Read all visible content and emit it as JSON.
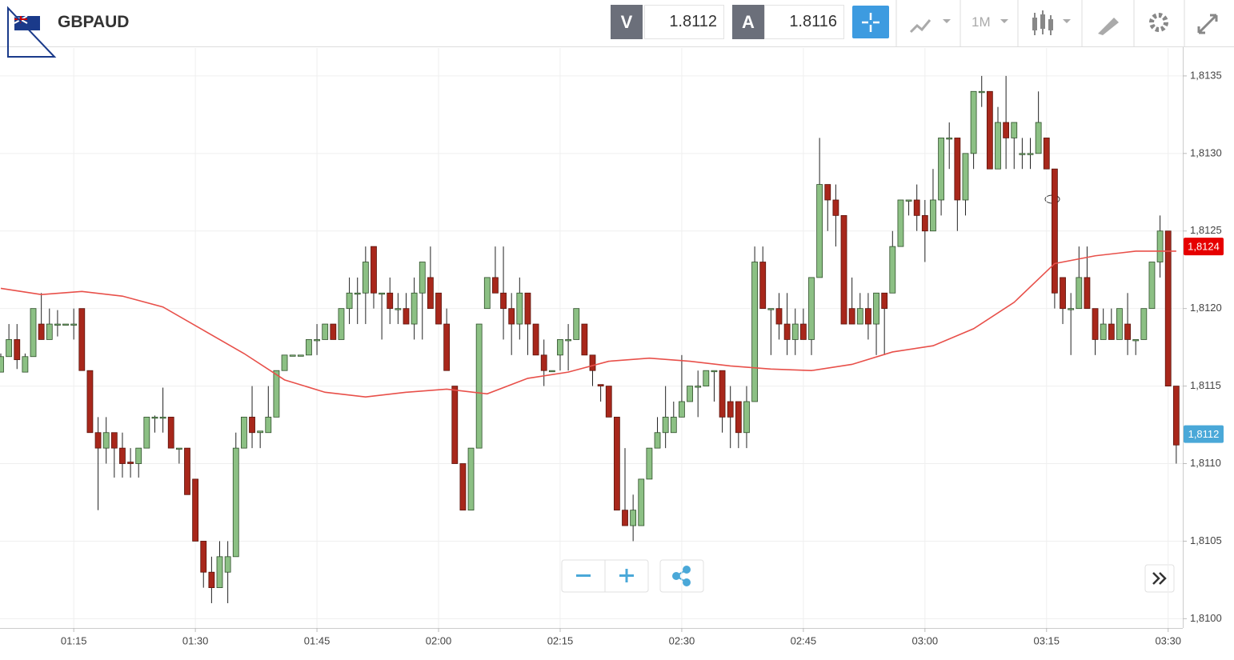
{
  "header": {
    "symbol": "GBPAUD",
    "sell": {
      "label": "V",
      "price": "1.8112"
    },
    "buy": {
      "label": "A",
      "price": "1.8116"
    },
    "timeframe": "1M"
  },
  "chart_data": {
    "type": "candlestick",
    "up_color": "#8cc084",
    "down_color": "#a8271b",
    "x": [
      "01:06",
      "01:07",
      "01:08",
      "01:09",
      "01:10",
      "01:11",
      "01:12",
      "01:13",
      "01:14",
      "01:15",
      "01:16",
      "01:17",
      "01:18",
      "01:19",
      "01:20",
      "01:21",
      "01:22",
      "01:23",
      "01:24",
      "01:25",
      "01:26",
      "01:27",
      "01:28",
      "01:29",
      "01:30",
      "01:31",
      "01:32",
      "01:33",
      "01:34",
      "01:35",
      "01:36",
      "01:37",
      "01:38",
      "01:39",
      "01:40",
      "01:41",
      "01:42",
      "01:43",
      "01:44",
      "01:45",
      "01:46",
      "01:47",
      "01:48",
      "01:49",
      "01:50",
      "01:51",
      "01:52",
      "01:53",
      "01:54",
      "01:55",
      "01:56",
      "01:57",
      "01:58",
      "01:59",
      "02:00",
      "02:01",
      "02:02",
      "02:03",
      "02:04",
      "02:05",
      "02:06",
      "02:07",
      "02:08",
      "02:09",
      "02:10",
      "02:11",
      "02:12",
      "02:13",
      "02:14",
      "02:15",
      "02:16",
      "02:17",
      "02:18",
      "02:19",
      "02:20",
      "02:21",
      "02:22",
      "02:23",
      "02:24",
      "02:25",
      "02:26",
      "02:27",
      "02:28",
      "02:29",
      "02:30",
      "02:31",
      "02:32",
      "02:33",
      "02:34",
      "02:35",
      "02:36",
      "02:37",
      "02:38",
      "02:39",
      "02:40",
      "02:41",
      "02:42",
      "02:43",
      "02:44",
      "02:45",
      "02:46",
      "02:47",
      "02:48",
      "02:49",
      "02:50",
      "02:51",
      "02:52",
      "02:53",
      "02:54",
      "02:55",
      "02:56",
      "02:57",
      "02:58",
      "02:59",
      "03:00",
      "03:01",
      "03:02",
      "03:03",
      "03:04",
      "03:05",
      "03:06",
      "03:07",
      "03:08",
      "03:09",
      "03:10",
      "03:11",
      "03:12",
      "03:13",
      "03:14",
      "03:15",
      "03:16",
      "03:17",
      "03:18",
      "03:19",
      "03:20",
      "03:21",
      "03:22",
      "03:23",
      "03:24",
      "03:25",
      "03:26",
      "03:27",
      "03:28",
      "03:29",
      "03:30",
      "03:31"
    ],
    "open": [
      1.81159,
      1.81169,
      1.8118,
      1.81159,
      1.81169,
      1.8119,
      1.8118,
      1.8119,
      1.8119,
      1.8119,
      1.812,
      1.8116,
      1.8112,
      1.8111,
      1.8112,
      1.8111,
      1.81101,
      1.811,
      1.8111,
      1.8113,
      1.8113,
      1.8113,
      1.8111,
      1.8111,
      1.8109,
      1.8105,
      1.8103,
      1.8102,
      1.8103,
      1.8104,
      1.8111,
      1.8113,
      1.8112,
      1.8112,
      1.8113,
      1.8116,
      1.8117,
      1.8117,
      1.8117,
      1.8118,
      1.8118,
      1.8119,
      1.8118,
      1.812,
      1.8121,
      1.8121,
      1.8124,
      1.8121,
      1.8121,
      1.812,
      1.812,
      1.8119,
      1.8121,
      1.8122,
      1.8121,
      1.8119,
      1.8115,
      1.811,
      1.8107,
      1.8111,
      1.812,
      1.8122,
      1.8121,
      1.812,
      1.8119,
      1.8121,
      1.8119,
      1.8117,
      1.8116,
      1.8117,
      1.8118,
      1.8118,
      1.8119,
      1.8117,
      1.81151,
      1.8115,
      1.8113,
      1.8107,
      1.8106,
      1.8106,
      1.8109,
      1.8111,
      1.8112,
      1.8112,
      1.8113,
      1.8114,
      1.8115,
      1.8115,
      1.8116,
      1.8116,
      1.8114,
      1.8114,
      1.8112,
      1.8114,
      1.8123,
      1.812,
      1.812,
      1.8119,
      1.8118,
      1.8119,
      1.8118,
      1.8122,
      1.8128,
      1.8127,
      1.8126,
      1.812,
      1.8119,
      1.812,
      1.8119,
      1.8121,
      1.8121,
      1.8124,
      1.8127,
      1.8127,
      1.8126,
      1.8125,
      1.8127,
      1.8131,
      1.8131,
      1.8127,
      1.813,
      1.8134,
      1.8134,
      1.8129,
      1.8132,
      1.8131,
      1.813,
      1.813,
      1.813,
      1.8131,
      1.8129,
      1.8122,
      1.812,
      1.812,
      1.8122,
      1.812,
      1.8118,
      1.8119,
      1.8118,
      1.8119,
      1.8118,
      1.8118,
      1.812,
      1.8123,
      1.8125,
      1.8115
    ],
    "high": [
      1.81171,
      1.8119,
      1.8119,
      1.81171,
      1.812,
      1.8121,
      1.812,
      1.81199,
      1.8119,
      1.812,
      1.812,
      1.8116,
      1.8113,
      1.8113,
      1.8112,
      1.8112,
      1.8111,
      1.8111,
      1.8113,
      1.81131,
      1.81149,
      1.8113,
      1.8111,
      1.8111,
      1.8109,
      1.8105,
      1.8104,
      1.8105,
      1.8105,
      1.8112,
      1.8113,
      1.8115,
      1.81121,
      1.8115,
      1.8116,
      1.8117,
      1.8117,
      1.8117,
      1.8118,
      1.8119,
      1.8119,
      1.8119,
      1.812,
      1.8122,
      1.8122,
      1.8124,
      1.8124,
      1.8121,
      1.8122,
      1.8121,
      1.8121,
      1.8122,
      1.8123,
      1.8124,
      1.8121,
      1.812,
      1.8115,
      1.811,
      1.8111,
      1.8119,
      1.8122,
      1.8124,
      1.8124,
      1.8121,
      1.8122,
      1.8121,
      1.8119,
      1.8118,
      1.8116,
      1.8118,
      1.8119,
      1.812,
      1.8119,
      1.8117,
      1.81151,
      1.8115,
      1.8113,
      1.8111,
      1.8108,
      1.8109,
      1.8111,
      1.8113,
      1.8115,
      1.8114,
      1.8117,
      1.8115,
      1.8116,
      1.8116,
      1.8116,
      1.8116,
      1.8115,
      1.8114,
      1.8115,
      1.8124,
      1.8124,
      1.812,
      1.8121,
      1.8121,
      1.812,
      1.812,
      1.8122,
      1.8131,
      1.8128,
      1.8128,
      1.8126,
      1.8122,
      1.8121,
      1.8121,
      1.8121,
      1.8121,
      1.8125,
      1.8127,
      1.8127,
      1.8128,
      1.8127,
      1.8129,
      1.8131,
      1.8132,
      1.8131,
      1.813,
      1.8134,
      1.8135,
      1.8134,
      1.8133,
      1.8135,
      1.8132,
      1.8131,
      1.8131,
      1.8134,
      1.8131,
      1.8129,
      1.8122,
      1.8121,
      1.8124,
      1.8124,
      1.812,
      1.812,
      1.812,
      1.812,
      1.8121,
      1.8118,
      1.812,
      1.8123,
      1.8126,
      1.8125,
      1.8115
    ],
    "low": [
      1.81159,
      1.81169,
      1.81161,
      1.81159,
      1.81169,
      1.8118,
      1.8118,
      1.81182,
      1.8119,
      1.8118,
      1.8116,
      1.8112,
      1.8107,
      1.811,
      1.81091,
      1.81091,
      1.81091,
      1.81091,
      1.8111,
      1.8112,
      1.8112,
      1.8111,
      1.811,
      1.8108,
      1.8105,
      1.8102,
      1.8101,
      1.8102,
      1.8101,
      1.8104,
      1.8111,
      1.8111,
      1.8111,
      1.8112,
      1.8113,
      1.8116,
      1.8117,
      1.8117,
      1.8117,
      1.8117,
      1.8118,
      1.8118,
      1.8118,
      1.8119,
      1.8119,
      1.8119,
      1.812,
      1.8118,
      1.8119,
      1.8119,
      1.8119,
      1.8118,
      1.8118,
      1.812,
      1.8119,
      1.8116,
      1.811,
      1.8107,
      1.8107,
      1.8111,
      1.812,
      1.8121,
      1.8118,
      1.8117,
      1.8118,
      1.8117,
      1.8117,
      1.8115,
      1.8116,
      1.8116,
      1.8116,
      1.8118,
      1.8117,
      1.8115,
      1.8114,
      1.8113,
      1.8107,
      1.8106,
      1.8105,
      1.8106,
      1.8109,
      1.8111,
      1.8111,
      1.8112,
      1.8113,
      1.8114,
      1.8113,
      1.8115,
      1.8114,
      1.8112,
      1.8111,
      1.8111,
      1.8111,
      1.8114,
      1.812,
      1.8117,
      1.8118,
      1.8117,
      1.8117,
      1.8118,
      1.8117,
      1.8122,
      1.8125,
      1.8124,
      1.8119,
      1.8119,
      1.8119,
      1.8118,
      1.8117,
      1.8117,
      1.8121,
      1.8124,
      1.8126,
      1.8125,
      1.8123,
      1.8125,
      1.8126,
      1.8129,
      1.8125,
      1.8126,
      1.8129,
      1.8133,
      1.8129,
      1.8129,
      1.8129,
      1.8129,
      1.8129,
      1.8129,
      1.813,
      1.8129,
      1.812,
      1.8119,
      1.8117,
      1.812,
      1.812,
      1.8117,
      1.8118,
      1.8118,
      1.8118,
      1.8117,
      1.8117,
      1.8118,
      1.812,
      1.8122,
      1.8115,
      1.811
    ],
    "close": [
      1.81169,
      1.8118,
      1.81167,
      1.81169,
      1.812,
      1.8118,
      1.8119,
      1.8119,
      1.8119,
      1.8119,
      1.8116,
      1.8112,
      1.8111,
      1.8112,
      1.8111,
      1.811,
      1.811,
      1.8111,
      1.8113,
      1.8113,
      1.8113,
      1.8111,
      1.8111,
      1.8108,
      1.8105,
      1.8103,
      1.8102,
      1.8104,
      1.8104,
      1.8111,
      1.8113,
      1.8112,
      1.81121,
      1.8113,
      1.8116,
      1.8117,
      1.8117,
      1.8117,
      1.8118,
      1.8118,
      1.8119,
      1.8118,
      1.812,
      1.8121,
      1.8121,
      1.8123,
      1.8121,
      1.8121,
      1.812,
      1.812,
      1.8119,
      1.8121,
      1.8123,
      1.812,
      1.8119,
      1.8116,
      1.811,
      1.8107,
      1.8111,
      1.8119,
      1.8122,
      1.8121,
      1.812,
      1.8119,
      1.8121,
      1.8119,
      1.8117,
      1.8116,
      1.8116,
      1.8118,
      1.8118,
      1.812,
      1.8117,
      1.8116,
      1.8115,
      1.8113,
      1.8107,
      1.8106,
      1.8107,
      1.8109,
      1.8111,
      1.8112,
      1.8113,
      1.8113,
      1.8114,
      1.8115,
      1.8115,
      1.8116,
      1.8116,
      1.8113,
      1.8113,
      1.8112,
      1.8114,
      1.8123,
      1.812,
      1.812,
      1.8119,
      1.8118,
      1.8119,
      1.8118,
      1.8122,
      1.8128,
      1.8127,
      1.8126,
      1.8119,
      1.8119,
      1.812,
      1.8119,
      1.8121,
      1.812,
      1.8124,
      1.8127,
      1.8127,
      1.8126,
      1.8125,
      1.8127,
      1.8131,
      1.8131,
      1.8127,
      1.813,
      1.8134,
      1.8134,
      1.8129,
      1.8132,
      1.8131,
      1.8132,
      1.813,
      1.813,
      1.8132,
      1.8129,
      1.8121,
      1.812,
      1.812,
      1.8122,
      1.812,
      1.8118,
      1.8119,
      1.8118,
      1.812,
      1.8118,
      1.8118,
      1.812,
      1.8123,
      1.8125,
      1.8115,
      1.81112
    ],
    "moving_average": {
      "color": "#e8504a",
      "x": [
        "01:06",
        "01:11",
        "01:16",
        "01:21",
        "01:26",
        "01:31",
        "01:36",
        "01:41",
        "01:46",
        "01:51",
        "01:56",
        "02:01",
        "02:06",
        "02:11",
        "02:16",
        "02:21",
        "02:26",
        "02:31",
        "02:36",
        "02:41",
        "02:46",
        "02:51",
        "02:56",
        "03:01",
        "03:06",
        "03:11",
        "03:16",
        "03:21",
        "03:26",
        "03:31"
      ],
      "values": [
        1.81213,
        1.81209,
        1.81211,
        1.81208,
        1.81201,
        1.81186,
        1.81171,
        1.81154,
        1.81146,
        1.81143,
        1.81146,
        1.81148,
        1.81145,
        1.81155,
        1.81159,
        1.81166,
        1.81168,
        1.81166,
        1.81163,
        1.81161,
        1.8116,
        1.81164,
        1.81172,
        1.81176,
        1.81187,
        1.81204,
        1.81229,
        1.81234,
        1.81237,
        1.81237
      ]
    },
    "price_tags": [
      {
        "value": 1.8124,
        "label": "1,8124",
        "color": "#e60000"
      },
      {
        "value": 1.81119,
        "label": "1,8112",
        "color": "#4aa8d8"
      }
    ],
    "ylim": [
      1.80994,
      1.81368
    ],
    "yticks": [
      {
        "value": 1.81,
        "label": "1,8100"
      },
      {
        "value": 1.8105,
        "label": "1,8105"
      },
      {
        "value": 1.811,
        "label": "1,8110"
      },
      {
        "value": 1.8115,
        "label": "1,8115"
      },
      {
        "value": 1.812,
        "label": "1,8120"
      },
      {
        "value": 1.8125,
        "label": "1,8125"
      },
      {
        "value": 1.813,
        "label": "1,8130"
      },
      {
        "value": 1.8135,
        "label": "1,8135"
      }
    ],
    "xticks": [
      "01:15",
      "01:30",
      "01:45",
      "02:00",
      "02:15",
      "02:30",
      "02:45",
      "03:00",
      "03:15",
      "03:30"
    ],
    "grid": true
  }
}
